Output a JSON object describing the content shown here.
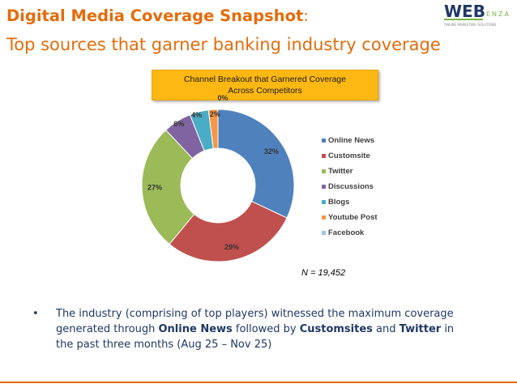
{
  "header": {
    "title_main": "Digital Media Coverage Snapshot",
    "title_colon": ":",
    "subtitle": "Top sources that garner banking industry coverage"
  },
  "logo": {
    "text": "WEB",
    "sub_text": "ENZA",
    "tagline": "ONLINE MARKETING SOLUTIONS"
  },
  "chart_data": {
    "type": "pie",
    "donut": true,
    "title": "Channel Breakout that Garnered Coverage Across Competitors",
    "categories": [
      "Online News",
      "Customsite",
      "Twitter",
      "Discussions",
      "Blogs",
      "Youtube Post",
      "Facebook"
    ],
    "values": [
      32,
      29,
      27,
      6,
      4,
      2,
      0
    ],
    "labels": [
      "32%",
      "29%",
      "27%",
      "6%",
      "4%",
      "2%",
      "0%"
    ],
    "colors": [
      "#4F81BD",
      "#C0504D",
      "#9BBB59",
      "#8064A2",
      "#4BACC6",
      "#F79646",
      "#9DC3E6"
    ],
    "legend": "right",
    "note": "N = 19,452"
  },
  "bullet": {
    "prefix": "The industry (comprising of top players) witnessed the maximum coverage generated through ",
    "strong1": "Online News",
    "mid1": " followed by ",
    "strong2": "Customsites",
    "mid2": " and ",
    "strong3": "Twitter",
    "suffix": " in the past three months (Aug 25 – Nov 25)"
  },
  "colors": {
    "accent": "#E36C0A",
    "chart_title_bg": "#FDB813",
    "body_text": "#1f3864"
  }
}
